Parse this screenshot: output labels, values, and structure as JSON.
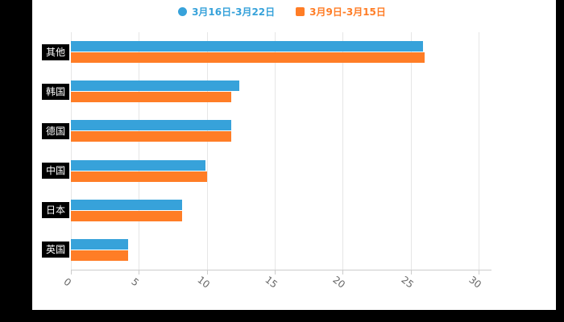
{
  "page": {
    "background": "#000000",
    "panel_background": "#ffffff"
  },
  "legend": {
    "items": [
      {
        "label": "3月16日-3月22日",
        "color": "#37A2DA",
        "shape": "circle"
      },
      {
        "label": "3月9日-3月15日",
        "color": "#FF7D26",
        "shape": "square"
      }
    ]
  },
  "chart_data": {
    "type": "bar",
    "orientation": "horizontal",
    "title": "",
    "xlabel": "",
    "ylabel": "",
    "categories": [
      "其他",
      "韩国",
      "德国",
      "中国",
      "日本",
      "英国"
    ],
    "series": [
      {
        "name": "3月16日-3月22日",
        "color": "#37A2DA",
        "values": [
          25.9,
          12.4,
          11.8,
          9.9,
          8.2,
          4.2
        ]
      },
      {
        "name": "3月9日-3月15日",
        "color": "#FF7D26",
        "values": [
          26.0,
          11.8,
          11.8,
          10.0,
          8.2,
          4.2
        ]
      }
    ],
    "x_ticks": [
      0,
      5,
      10,
      15,
      20,
      25,
      30
    ],
    "xlim": [
      0,
      31
    ],
    "grid": true,
    "legend_position": "top",
    "axis_label_color": "#666666",
    "grid_color": "#e6e6e6",
    "category_label_style": {
      "background": "#000000",
      "color": "#ffffff"
    }
  }
}
